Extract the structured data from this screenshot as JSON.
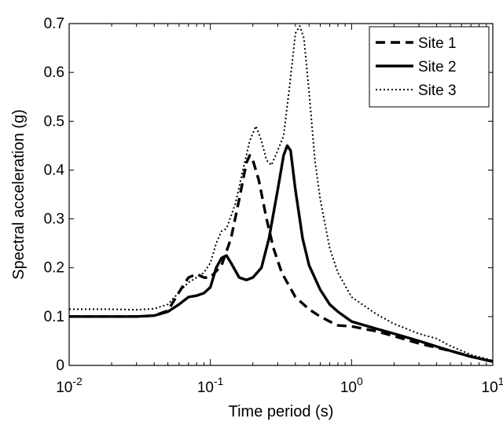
{
  "chart_data": {
    "type": "line",
    "title": "",
    "xlabel": "Time period (s)",
    "ylabel": "Spectral acceleration (g)",
    "xscale": "log",
    "xlim": [
      0.01,
      10
    ],
    "ylim": [
      0,
      0.7
    ],
    "grid": false,
    "legend_position": "top-right",
    "x_ticks": [
      {
        "value": 0.01,
        "base": "10",
        "exp": "-2"
      },
      {
        "value": 0.1,
        "base": "10",
        "exp": "-1"
      },
      {
        "value": 1,
        "base": "10",
        "exp": "0"
      },
      {
        "value": 10,
        "base": "10",
        "exp": "1"
      }
    ],
    "y_ticks": [
      {
        "value": 0,
        "label": "0"
      },
      {
        "value": 0.1,
        "label": "0.1"
      },
      {
        "value": 0.2,
        "label": "0.2"
      },
      {
        "value": 0.3,
        "label": "0.3"
      },
      {
        "value": 0.4,
        "label": "0.4"
      },
      {
        "value": 0.5,
        "label": "0.5"
      },
      {
        "value": 0.6,
        "label": "0.6"
      },
      {
        "value": 0.7,
        "label": "0.7"
      }
    ],
    "series": [
      {
        "name": "Site 1",
        "style": "dashed",
        "color": "#000000",
        "points": [
          [
            0.01,
            0.1
          ],
          [
            0.02,
            0.1
          ],
          [
            0.03,
            0.1
          ],
          [
            0.04,
            0.102
          ],
          [
            0.05,
            0.112
          ],
          [
            0.06,
            0.15
          ],
          [
            0.07,
            0.18
          ],
          [
            0.08,
            0.187
          ],
          [
            0.09,
            0.18
          ],
          [
            0.1,
            0.18
          ],
          [
            0.12,
            0.205
          ],
          [
            0.14,
            0.26
          ],
          [
            0.16,
            0.34
          ],
          [
            0.18,
            0.415
          ],
          [
            0.19,
            0.43
          ],
          [
            0.2,
            0.42
          ],
          [
            0.22,
            0.38
          ],
          [
            0.25,
            0.3
          ],
          [
            0.28,
            0.24
          ],
          [
            0.32,
            0.19
          ],
          [
            0.4,
            0.14
          ],
          [
            0.5,
            0.115
          ],
          [
            0.6,
            0.1
          ],
          [
            0.7,
            0.09
          ],
          [
            0.8,
            0.082
          ],
          [
            1.0,
            0.08
          ],
          [
            1.5,
            0.07
          ],
          [
            2.0,
            0.06
          ],
          [
            3.0,
            0.045
          ],
          [
            5.0,
            0.03
          ],
          [
            7.0,
            0.018
          ],
          [
            10.0,
            0.008
          ]
        ]
      },
      {
        "name": "Site 2",
        "style": "solid",
        "color": "#000000",
        "points": [
          [
            0.01,
            0.1
          ],
          [
            0.02,
            0.1
          ],
          [
            0.03,
            0.1
          ],
          [
            0.04,
            0.102
          ],
          [
            0.05,
            0.11
          ],
          [
            0.06,
            0.125
          ],
          [
            0.07,
            0.14
          ],
          [
            0.08,
            0.143
          ],
          [
            0.09,
            0.148
          ],
          [
            0.1,
            0.16
          ],
          [
            0.11,
            0.2
          ],
          [
            0.12,
            0.22
          ],
          [
            0.13,
            0.225
          ],
          [
            0.14,
            0.21
          ],
          [
            0.16,
            0.18
          ],
          [
            0.18,
            0.175
          ],
          [
            0.2,
            0.18
          ],
          [
            0.23,
            0.2
          ],
          [
            0.26,
            0.26
          ],
          [
            0.3,
            0.36
          ],
          [
            0.33,
            0.43
          ],
          [
            0.35,
            0.45
          ],
          [
            0.37,
            0.44
          ],
          [
            0.4,
            0.36
          ],
          [
            0.45,
            0.26
          ],
          [
            0.5,
            0.205
          ],
          [
            0.6,
            0.155
          ],
          [
            0.7,
            0.125
          ],
          [
            0.8,
            0.11
          ],
          [
            1.0,
            0.09
          ],
          [
            1.5,
            0.075
          ],
          [
            2.0,
            0.065
          ],
          [
            3.0,
            0.05
          ],
          [
            5.0,
            0.03
          ],
          [
            7.0,
            0.018
          ],
          [
            10.0,
            0.008
          ]
        ]
      },
      {
        "name": "Site 3",
        "style": "dotted",
        "color": "#000000",
        "points": [
          [
            0.01,
            0.115
          ],
          [
            0.02,
            0.115
          ],
          [
            0.03,
            0.114
          ],
          [
            0.04,
            0.116
          ],
          [
            0.05,
            0.125
          ],
          [
            0.06,
            0.15
          ],
          [
            0.07,
            0.17
          ],
          [
            0.08,
            0.18
          ],
          [
            0.09,
            0.19
          ],
          [
            0.1,
            0.21
          ],
          [
            0.11,
            0.25
          ],
          [
            0.12,
            0.275
          ],
          [
            0.13,
            0.28
          ],
          [
            0.15,
            0.33
          ],
          [
            0.17,
            0.4
          ],
          [
            0.19,
            0.46
          ],
          [
            0.21,
            0.49
          ],
          [
            0.23,
            0.46
          ],
          [
            0.25,
            0.42
          ],
          [
            0.27,
            0.41
          ],
          [
            0.3,
            0.44
          ],
          [
            0.33,
            0.47
          ],
          [
            0.36,
            0.56
          ],
          [
            0.4,
            0.68
          ],
          [
            0.43,
            0.695
          ],
          [
            0.46,
            0.67
          ],
          [
            0.5,
            0.56
          ],
          [
            0.55,
            0.42
          ],
          [
            0.6,
            0.34
          ],
          [
            0.7,
            0.24
          ],
          [
            0.8,
            0.19
          ],
          [
            1.0,
            0.14
          ],
          [
            1.5,
            0.105
          ],
          [
            2.0,
            0.085
          ],
          [
            3.0,
            0.065
          ],
          [
            4.0,
            0.055
          ],
          [
            5.0,
            0.04
          ],
          [
            7.0,
            0.022
          ],
          [
            10.0,
            0.01
          ]
        ]
      }
    ]
  }
}
